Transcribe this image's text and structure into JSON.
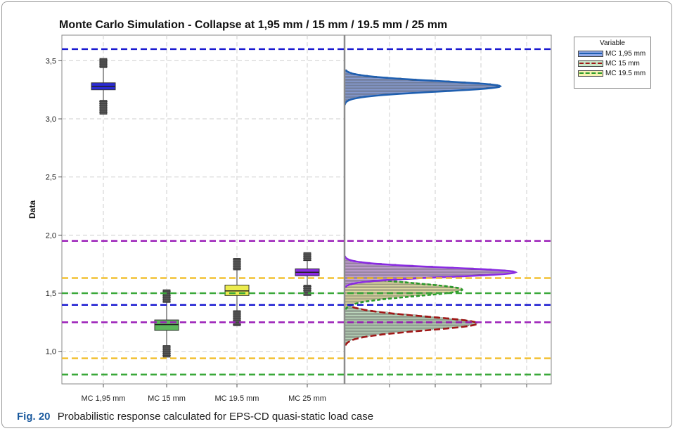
{
  "caption": {
    "fig_label": "Fig. 20",
    "text": "Probabilistic response calculated for EPS-CD quasi-static load case"
  },
  "legend": {
    "title": "Variable",
    "items": [
      {
        "label": "MC 1,95 mm",
        "fill": "#8fa8e8",
        "line": "#1f5fb0",
        "dash": "solid"
      },
      {
        "label": "MC 15 mm",
        "fill": "#c8e6c8",
        "line": "#a01818",
        "dash": "long-dash"
      },
      {
        "label": "MC 19.5 mm",
        "fill": "#f7f2b0",
        "line": "#2a9a2a",
        "dash": "short-dash"
      }
    ]
  },
  "chart_data": {
    "type": "boxplot+histogram",
    "title": "Monte Carlo Simulation - Collapse at 1,95 mm / 15 mm / 19.5 mm / 25 mm",
    "ylabel": "Data",
    "xlabel": "",
    "ylim": [
      0.72,
      3.72
    ],
    "yticks": [
      1.0,
      1.5,
      2.0,
      2.5,
      3.0,
      3.5
    ],
    "ytick_labels": [
      "1,0",
      "1,5",
      "2,0",
      "2,5",
      "3,0",
      "3,5"
    ],
    "categories": [
      "MC 1,95 mm",
      "MC 15 mm",
      "MC 19.5 mm",
      "MC 25 mm"
    ],
    "boxes": [
      {
        "name": "MC 1,95 mm",
        "color": "#2b2bd6",
        "q1": 3.25,
        "median": 3.28,
        "q3": 3.31,
        "whisker_low": 3.16,
        "whisker_high": 3.44,
        "outlier_low": [
          3.04,
          3.16
        ],
        "outlier_high": [
          3.44,
          3.52
        ]
      },
      {
        "name": "MC 15 mm",
        "color": "#5cb85c",
        "q1": 1.18,
        "median": 1.23,
        "q3": 1.27,
        "whisker_low": 1.05,
        "whisker_high": 1.42,
        "outlier_low": [
          0.95,
          1.05
        ],
        "outlier_high": [
          1.42,
          1.53
        ]
      },
      {
        "name": "MC 19.5 mm",
        "color": "#ecec4e",
        "q1": 1.48,
        "median": 1.52,
        "q3": 1.57,
        "whisker_low": 1.35,
        "whisker_high": 1.7,
        "outlier_low": [
          1.22,
          1.35
        ],
        "outlier_high": [
          1.7,
          1.8
        ]
      },
      {
        "name": "MC 25 mm",
        "color": "#8a2be2",
        "q1": 1.65,
        "median": 1.68,
        "q3": 1.71,
        "whisker_low": 1.57,
        "whisker_high": 1.78,
        "outlier_low": [
          1.48,
          1.57
        ],
        "outlier_high": [
          1.78,
          1.85
        ]
      }
    ],
    "histograms": [
      {
        "name": "MC 1,95 mm",
        "center": 3.28,
        "sd": 0.045,
        "min": 3.12,
        "max": 3.42,
        "peak": 0.82,
        "fill": "#8fa8e8",
        "line": "#1f5fb0",
        "dash": "solid"
      },
      {
        "name": "MC 15 mm",
        "center": 1.24,
        "sd": 0.06,
        "min": 1.05,
        "max": 1.42,
        "peak": 0.7,
        "fill": "#c8e6c8",
        "line": "#a01818",
        "dash": "long-dash"
      },
      {
        "name": "MC 19.5 mm",
        "center": 1.53,
        "sd": 0.055,
        "min": 1.36,
        "max": 1.72,
        "peak": 0.62,
        "fill": "#f7f2b0",
        "line": "#2a9a2a",
        "dash": "short-dash"
      },
      {
        "name": "MC 25 mm",
        "center": 1.68,
        "sd": 0.04,
        "min": 1.55,
        "max": 1.82,
        "peak": 0.9,
        "fill": "#d8b0ec",
        "line": "#8a2be2",
        "dash": "solid"
      }
    ],
    "reference_lines": [
      {
        "y": 3.6,
        "color": "#1a1ad0"
      },
      {
        "y": 1.4,
        "color": "#1a1ad0"
      },
      {
        "y": 1.95,
        "color": "#9b1fb8"
      },
      {
        "y": 1.25,
        "color": "#9b1fb8"
      },
      {
        "y": 1.63,
        "color": "#f2c030"
      },
      {
        "y": 0.94,
        "color": "#f2c030"
      },
      {
        "y": 1.5,
        "color": "#3aa83a"
      },
      {
        "y": 0.8,
        "color": "#3aa83a"
      }
    ],
    "grid": true
  }
}
